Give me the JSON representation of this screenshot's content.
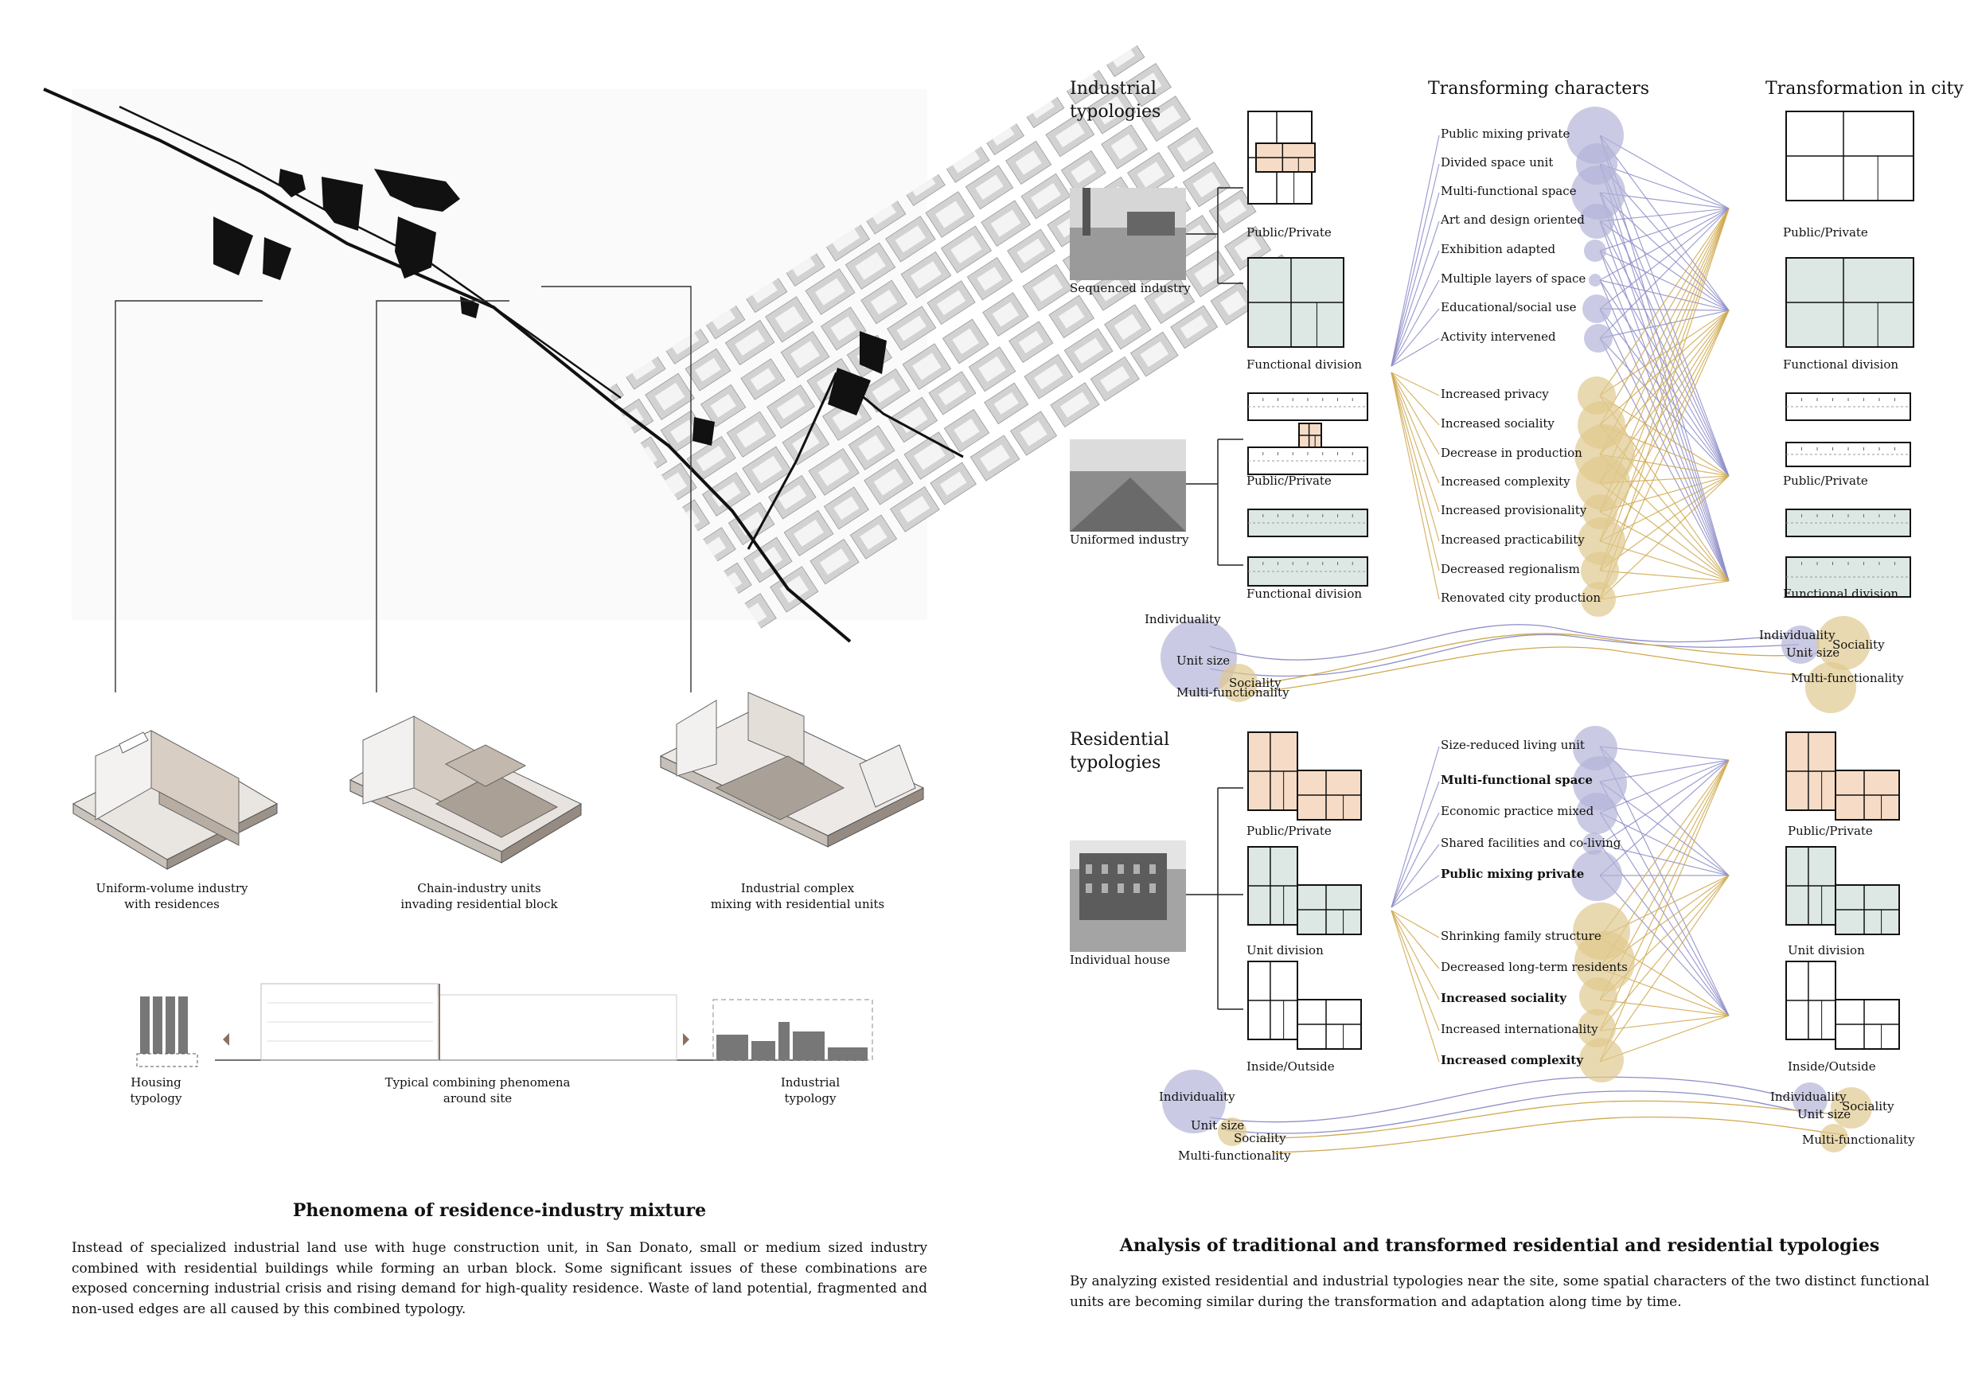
{
  "left": {
    "axon_captions": [
      "Uniform-volume industry\nwith residences",
      "Chain-industry units\ninvading residential block",
      "Industrial complex\nmixing with residential units"
    ],
    "section_labels": {
      "housing": "Housing\ntypology",
      "combining": "Typical combining phenomena\naround site",
      "industrial": "Industrial\ntypology"
    },
    "title": "Phenomena of residence-industry mixture",
    "paragraph": "Instead of specialized industrial land use with huge construction unit, in San Donato, small or medium sized industry combined with residential buildings while forming an urban block. Some significant issues of these combinations are exposed concerning industrial crisis and rising demand for high-quality residence. Waste of land potential, fragmented and non-used edges are all caused by this combined typology."
  },
  "right": {
    "headers": {
      "industrial": "Industrial\ntypologies",
      "transforming": "Transforming characters",
      "city": "Transformation in city",
      "residential": "Residential\ntypologies"
    },
    "photo_labels": {
      "sequenced": "Sequenced industry",
      "uniformed": "Uniformed industry",
      "individual": "Individual house"
    },
    "plan_labels_industrial": [
      "Public/Private",
      "Functional division",
      "Public/Private",
      "Functional division"
    ],
    "plan_labels_city_industrial": [
      "Public/Private",
      "Functional division",
      "Public/Private",
      "Functional division"
    ],
    "plan_labels_residential": [
      "Public/Private",
      "Unit division",
      "Inside/Outside"
    ],
    "plan_labels_city_residential": [
      "Public/Private",
      "Unit division",
      "Inside/Outside"
    ],
    "industrial_characters_purple": [
      "Public mixing private",
      "Divided space unit",
      "Multi-functional space",
      "Art and design oriented",
      "Exhibition adapted",
      "Multiple layers of space",
      "Educational/social use",
      "Activity intervened"
    ],
    "industrial_characters_gold": [
      "Increased privacy",
      "Increased sociality",
      "Decrease in production",
      "Increased complexity",
      "Increased provisionality",
      "Increased practicability",
      "Decreased regionalism",
      "Renovated city production"
    ],
    "residential_characters_purple": [
      "Size-reduced living unit",
      "Multi-functional space",
      "Economic practice mixed",
      "Shared facilities and co-living",
      "Public mixing private"
    ],
    "residential_characters_gold": [
      "Shrinking family structure",
      "Decreased long-term residents",
      "Increased sociality",
      "Increased internationality",
      "Increased complexity"
    ],
    "legend_words": {
      "individuality": "Individuality",
      "unit_size": "Unit size",
      "sociality": "Sociality",
      "multi_functionality": "Multi-functionality"
    },
    "title": "Analysis of traditional and transformed residential and residential typologies",
    "paragraph": "By analyzing existed residential and industrial typologies near the site, some spatial characters of the two distinct functional units are becoming similar during the transformation and adaptation along time by time."
  },
  "colors": {
    "purple": "#b3b3d9",
    "gold": "#e0c98e",
    "purple_line": "#8e8ec9",
    "gold_line": "#cfa94f",
    "peach": "#f6dcc6",
    "mint": "#dde8e4"
  }
}
